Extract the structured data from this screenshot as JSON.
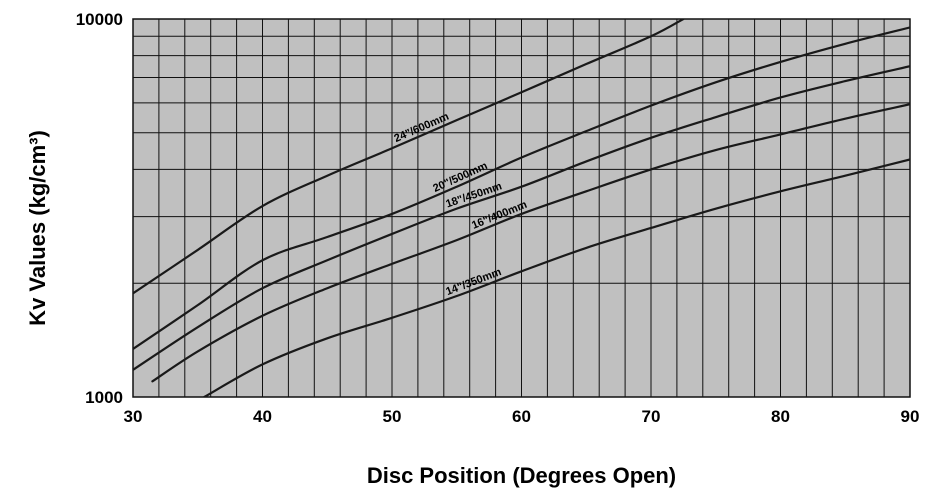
{
  "chart_data": {
    "type": "line",
    "title": "",
    "xlabel": "Disc Position (Degrees Open)",
    "ylabel": "Kv Values (kg/cm³)",
    "xlim": [
      30,
      90
    ],
    "ylim": [
      1000,
      10000
    ],
    "yscale": "log",
    "x_ticks": [
      30,
      40,
      50,
      60,
      70,
      80,
      90
    ],
    "x_tick_labels": [
      "30",
      "40",
      "50",
      "60",
      "70",
      "80",
      "90"
    ],
    "y_ticks": [
      1000,
      10000
    ],
    "y_tick_labels": [
      "1000",
      "10000"
    ],
    "grid": true,
    "legend": "none",
    "colors": {
      "plot_background": "#c0c0c0",
      "grid": "#111111",
      "line": "#1a1a1a",
      "page": "#ffffff"
    },
    "series": [
      {
        "name": "24\"/600mm",
        "x": [
          30,
          35,
          40,
          45,
          50,
          55,
          60,
          65,
          70,
          72.5
        ],
        "y": [
          1880,
          2450,
          3200,
          3850,
          4550,
          5400,
          6400,
          7600,
          9000,
          10000
        ]
      },
      {
        "name": "20\"/500mm",
        "x": [
          30,
          35,
          40,
          45,
          50,
          55,
          60,
          65,
          70,
          75,
          80,
          85,
          90
        ],
        "y": [
          1340,
          1750,
          2300,
          2650,
          3050,
          3600,
          4300,
          5050,
          5900,
          6800,
          7700,
          8600,
          9500
        ]
      },
      {
        "name": "18\"/450mm",
        "x": [
          30,
          35,
          40,
          45,
          50,
          55,
          60,
          65,
          70,
          75,
          80,
          85,
          90
        ],
        "y": [
          1180,
          1530,
          1940,
          2300,
          2700,
          3150,
          3600,
          4200,
          4850,
          5500,
          6200,
          6850,
          7500
        ]
      },
      {
        "name": "16\"/400mm",
        "x": [
          31.5,
          35,
          40,
          45,
          50,
          55,
          60,
          65,
          70,
          75,
          80,
          85,
          90
        ],
        "y": [
          1100,
          1320,
          1640,
          1940,
          2250,
          2600,
          3050,
          3500,
          4000,
          4500,
          4950,
          5450,
          5950
        ]
      },
      {
        "name": "14\"/350mm",
        "x": [
          35.5,
          40,
          45,
          50,
          55,
          60,
          65,
          70,
          75,
          80,
          85,
          90
        ],
        "y": [
          1000,
          1220,
          1430,
          1620,
          1850,
          2150,
          2480,
          2800,
          3150,
          3500,
          3850,
          4250
        ]
      }
    ]
  }
}
